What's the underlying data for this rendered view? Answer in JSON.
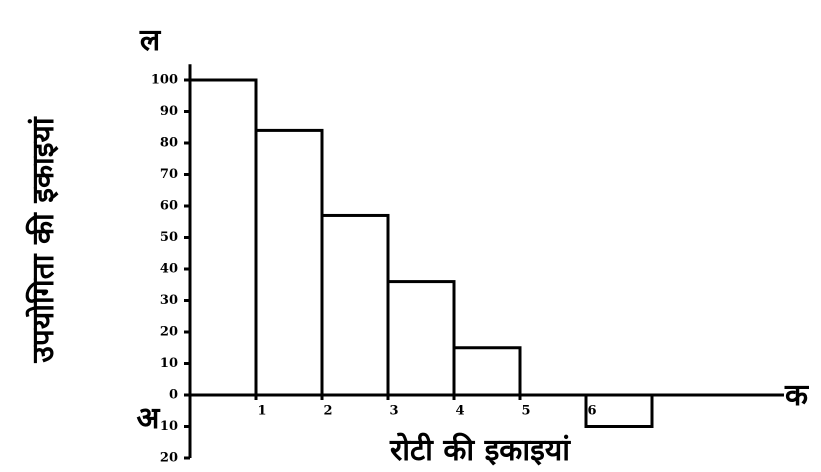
{
  "chart_data": {
    "type": "histogram",
    "y_axis_label": "उपयोगिता की इकाइयां",
    "x_axis_label": "रोटी की इकाइयां",
    "y_axis_letter": "ल",
    "x_axis_letter": "क",
    "origin_letter": "अ",
    "bins": [
      0,
      1,
      2,
      3,
      4,
      5,
      6,
      7
    ],
    "values": [
      100,
      84,
      57,
      36,
      15,
      0,
      -10
    ],
    "color": "#000000",
    "xlim": [
      0,
      9
    ],
    "xticks": [
      1,
      2,
      3,
      4,
      5,
      6
    ],
    "ylim": [
      -20,
      105
    ],
    "yticks": [
      100,
      90,
      80,
      70,
      60,
      50,
      40,
      30,
      20,
      10,
      0,
      {
        "value": -10,
        "label": "10"
      },
      {
        "value": -20,
        "label": "20"
      }
    ]
  }
}
